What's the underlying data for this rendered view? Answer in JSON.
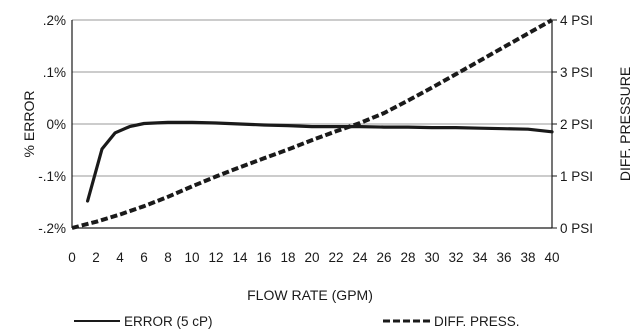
{
  "chart_data": {
    "type": "line",
    "xlabel": "FLOW RATE (GPM)",
    "ylabel_left": "% ERROR",
    "ylabel_right": "DIFF. PRESSURE",
    "xlim": [
      0,
      40
    ],
    "ylim_left": [
      -0.2,
      0.2
    ],
    "ylim_right": [
      0,
      4
    ],
    "x_ticks": [
      "0",
      "2",
      "4",
      "6",
      "8",
      "10",
      "12",
      "14",
      "16",
      "18",
      "20",
      "22",
      "24",
      "26",
      "28",
      "30",
      "32",
      "34",
      "36",
      "38",
      "40"
    ],
    "y_ticks_left": [
      {
        "value": 0.2,
        "label": ".2%"
      },
      {
        "value": 0.1,
        "label": ".1%"
      },
      {
        "value": 0.0,
        "label": "0%"
      },
      {
        "value": -0.1,
        "label": "-.1%"
      },
      {
        "value": -0.2,
        "label": "-.2%"
      }
    ],
    "y_ticks_right": [
      {
        "value": 4,
        "label": "4 PSI"
      },
      {
        "value": 3,
        "label": "3 PSI"
      },
      {
        "value": 2,
        "label": "2 PSI"
      },
      {
        "value": 1,
        "label": "1 PSI"
      },
      {
        "value": 0,
        "label": "0 PSI"
      }
    ],
    "grid": "horizontal",
    "legend_position": "bottom",
    "series": [
      {
        "name": "ERROR (5 cP)",
        "axis": "left",
        "style": "solid",
        "color": "#1a1a1a",
        "x": [
          1.3,
          2.5,
          3.6,
          4.8,
          6,
          8,
          10,
          12,
          14,
          16,
          18,
          20,
          22,
          24,
          26,
          28,
          30,
          32,
          34,
          36,
          38,
          40
        ],
        "y": [
          -0.148,
          -0.048,
          -0.017,
          -0.005,
          0.001,
          0.003,
          0.003,
          0.002,
          0.0,
          -0.002,
          -0.003,
          -0.005,
          -0.005,
          -0.005,
          -0.006,
          -0.006,
          -0.007,
          -0.007,
          -0.008,
          -0.009,
          -0.01,
          -0.015
        ]
      },
      {
        "name": "DIFF. PRESS.",
        "axis": "right",
        "style": "dashed",
        "color": "#1a1a1a",
        "x": [
          0,
          2,
          4,
          6,
          8,
          10,
          12,
          14,
          16,
          18,
          20,
          22,
          24,
          26,
          28,
          30,
          32,
          34,
          36,
          38,
          40
        ],
        "y": [
          0.0,
          0.12,
          0.26,
          0.42,
          0.6,
          0.8,
          0.99,
          1.17,
          1.34,
          1.51,
          1.69,
          1.86,
          2.02,
          2.21,
          2.45,
          2.7,
          2.96,
          3.22,
          3.48,
          3.74,
          4.0
        ]
      }
    ]
  }
}
